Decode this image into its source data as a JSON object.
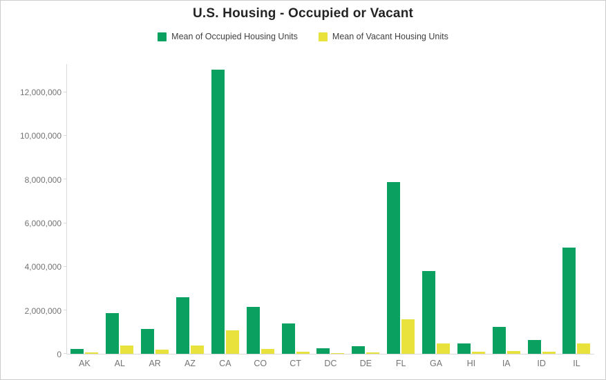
{
  "chart_data": {
    "type": "bar",
    "title": "U.S. Housing - Occupied or Vacant",
    "categories": [
      "AK",
      "AL",
      "AR",
      "AZ",
      "CA",
      "CO",
      "CT",
      "DC",
      "DE",
      "FL",
      "GA",
      "HI",
      "IA",
      "ID",
      "IL"
    ],
    "series": [
      {
        "name": "Mean of Occupied Housing Units",
        "color": "#0aa05f",
        "values": [
          230000,
          1870000,
          1150000,
          2600000,
          13060000,
          2150000,
          1380000,
          260000,
          350000,
          7900000,
          3810000,
          460000,
          1250000,
          640000,
          4870000
        ]
      },
      {
        "name": "Mean of Vacant Housing Units",
        "color": "#e9e13c",
        "values": [
          60000,
          380000,
          190000,
          380000,
          1070000,
          220000,
          100000,
          30000,
          50000,
          1590000,
          470000,
          80000,
          120000,
          80000,
          470000
        ]
      }
    ],
    "ylim": [
      0,
      13300000
    ],
    "yticks": [
      0,
      2000000,
      4000000,
      6000000,
      8000000,
      10000000,
      12000000
    ],
    "xlabel": "",
    "ylabel": "",
    "legend_position": "top",
    "grid": false
  },
  "colors": {
    "axis": "#d9d9d9",
    "tick_label": "#737373",
    "title_text": "#242424",
    "legend_text": "#3f3f3f",
    "background": "#ffffff",
    "border": "#cccccc"
  }
}
